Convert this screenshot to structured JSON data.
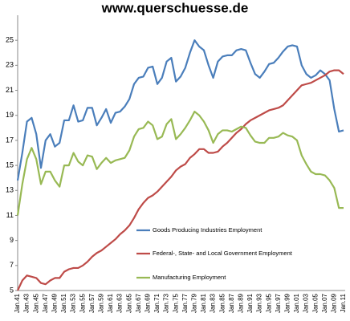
{
  "chart_data": {
    "type": "line",
    "title": "www.querschuesse.de",
    "categories": [
      "Jan.41",
      null,
      "Jan.43",
      null,
      "Jan.45",
      null,
      "Jan.47",
      null,
      "Jan.49",
      null,
      "Jan.51",
      null,
      "Jan.53",
      null,
      "Jan.55",
      null,
      "Jan.57",
      null,
      "Jan.59",
      null,
      "Jan.61",
      null,
      "Jan.63",
      null,
      "Jan.65",
      null,
      "Jan.67",
      null,
      "Jan.69",
      null,
      "Jan.71",
      null,
      "Jan.73",
      null,
      "Jan.75",
      null,
      "Jan.77",
      null,
      "Jan.79",
      null,
      "Jan.81",
      null,
      "Jan.83",
      null,
      "Jan.85",
      null,
      "Jan.87",
      null,
      "Jan.89",
      null,
      "Jan.91",
      null,
      "Jan.93",
      null,
      "Jan.95",
      null,
      "Jan.97",
      null,
      "Jan.99",
      null,
      "Jan.01",
      null,
      "Jan.03",
      null,
      "Jan.05",
      null,
      "Jan.07",
      null,
      "Jan.09",
      null,
      "Jan.11"
    ],
    "series": [
      {
        "name": "Goods Producing Industries Employment",
        "color": "#4a7ebb",
        "values": [
          13.8,
          16,
          18.5,
          18.8,
          17.5,
          14.8,
          17,
          17.5,
          16.5,
          16.8,
          18.6,
          18.6,
          19.8,
          18.5,
          18.6,
          19.6,
          19.6,
          18.2,
          18.8,
          19.5,
          18.4,
          19.2,
          19.3,
          19.7,
          20.3,
          21.5,
          22.0,
          22.1,
          22.8,
          22.9,
          21.5,
          22.0,
          23.3,
          23.6,
          21.7,
          22.1,
          22.8,
          24.0,
          25.0,
          24.5,
          24.2,
          23.0,
          22.0,
          23.3,
          23.7,
          23.8,
          23.8,
          24.2,
          24.3,
          24.2,
          23.2,
          22.3,
          22.0,
          22.5,
          23.1,
          23.2,
          23.6,
          24.1,
          24.5,
          24.6,
          24.5,
          23.0,
          22.3,
          22.0,
          22.2,
          22.6,
          22.3,
          21.8,
          19.5,
          17.7,
          17.8
        ]
      },
      {
        "name": "Federal-, State- and Local Government Employment",
        "color": "#be4b48",
        "values": [
          5,
          5.8,
          6.2,
          6.1,
          6.0,
          5.6,
          5.5,
          5.8,
          6.0,
          6.0,
          6.5,
          6.7,
          6.8,
          6.8,
          7.0,
          7.3,
          7.7,
          8.0,
          8.2,
          8.5,
          8.8,
          9.1,
          9.5,
          9.8,
          10.2,
          10.8,
          11.5,
          12.0,
          12.4,
          12.6,
          12.9,
          13.3,
          13.7,
          14.1,
          14.6,
          14.9,
          15.1,
          15.6,
          15.9,
          16.3,
          16.3,
          16.0,
          16.0,
          16.1,
          16.5,
          16.8,
          17.2,
          17.6,
          17.9,
          18.3,
          18.6,
          18.8,
          19.0,
          19.2,
          19.4,
          19.5,
          19.6,
          19.8,
          20.2,
          20.6,
          21.0,
          21.4,
          21.5,
          21.6,
          21.8,
          22.0,
          22.2,
          22.5,
          22.6,
          22.6,
          22.3
        ]
      },
      {
        "name": "Manufacturing Employment",
        "color": "#98b954",
        "values": [
          11,
          13.5,
          15.5,
          16.4,
          15.5,
          13.5,
          14.5,
          14.5,
          13.8,
          13.3,
          15.0,
          15.0,
          16.0,
          15.3,
          15.0,
          15.8,
          15.7,
          14.7,
          15.2,
          15.6,
          15.2,
          15.4,
          15.5,
          15.6,
          16.2,
          17.3,
          17.9,
          18.0,
          18.5,
          18.2,
          17.1,
          17.3,
          18.3,
          18.7,
          17.1,
          17.5,
          18.0,
          18.6,
          19.3,
          19.0,
          18.5,
          17.8,
          16.8,
          17.5,
          17.8,
          17.8,
          17.7,
          17.9,
          18.1,
          18.0,
          17.4,
          16.9,
          16.8,
          16.8,
          17.2,
          17.2,
          17.3,
          17.6,
          17.4,
          17.3,
          17.0,
          15.8,
          15.1,
          14.5,
          14.3,
          14.3,
          14.2,
          13.8,
          13.2,
          11.6,
          11.6
        ]
      }
    ],
    "ylim": [
      5,
      27
    ],
    "yticks": [
      5,
      7,
      9,
      11,
      13,
      15,
      17,
      19,
      21,
      23,
      25
    ]
  }
}
